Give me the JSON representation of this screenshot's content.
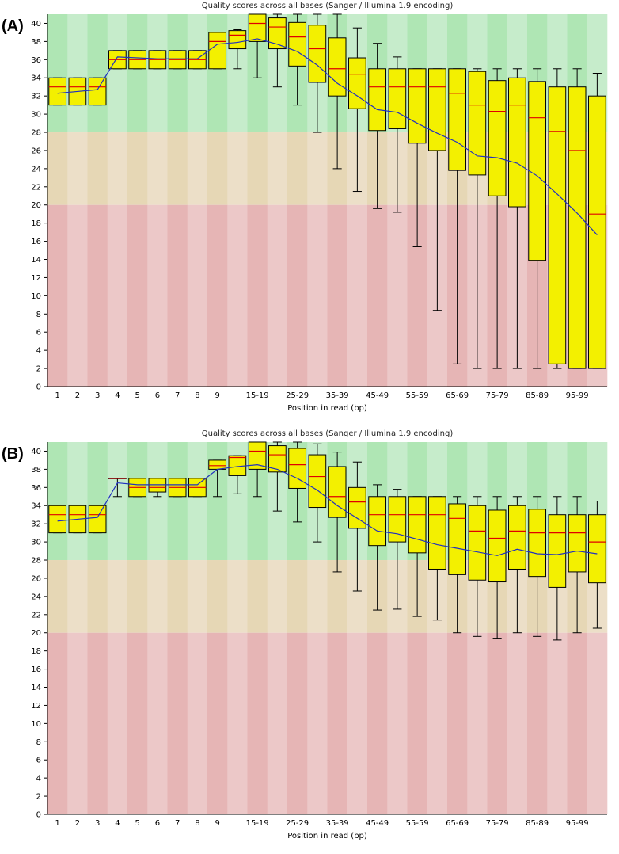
{
  "chart_data": [
    {
      "panel_label": "(A)",
      "type": "boxplot",
      "title": "Quality scores across all bases (Sanger / Illumina 1.9 encoding)",
      "xlabel": "Position in read (bp)",
      "ylabel": "",
      "ylim": [
        0,
        41
      ],
      "yticks": [
        0,
        2,
        4,
        6,
        8,
        10,
        12,
        14,
        16,
        18,
        20,
        22,
        24,
        26,
        28,
        30,
        32,
        34,
        36,
        38,
        40
      ],
      "zones": [
        {
          "name": "good",
          "from": 28,
          "to": 41,
          "colors": [
            "#afe6b4",
            "#c6eccb"
          ]
        },
        {
          "name": "reasonable",
          "from": 20,
          "to": 28,
          "colors": [
            "#e6d7b5",
            "#ecdfc8"
          ]
        },
        {
          "name": "poor",
          "from": 0,
          "to": 20,
          "colors": [
            "#e6b5b5",
            "#ecc8c8"
          ]
        }
      ],
      "colors": {
        "box": "#f3f000",
        "median": "#e00000",
        "mean": "#2030c0"
      },
      "categories": [
        "1",
        "2",
        "3",
        "4",
        "5",
        "6",
        "7",
        "8",
        "9",
        "10-14",
        "15-19",
        "20-24",
        "25-29",
        "30-34",
        "35-39",
        "40-44",
        "45-49",
        "50-54",
        "55-59",
        "60-64",
        "65-69",
        "70-74",
        "75-79",
        "80-84",
        "85-89",
        "90-94",
        "95-99",
        "100"
      ],
      "shown_tick_labels": [
        "1",
        "2",
        "3",
        "4",
        "5",
        "6",
        "7",
        "8",
        "9",
        "15-19",
        "25-29",
        "35-39",
        "45-49",
        "55-59",
        "65-69",
        "75-79",
        "85-89",
        "95-99"
      ],
      "series": [
        {
          "name": "lower_whisker",
          "values": [
            31,
            31,
            31,
            35,
            35,
            35,
            35,
            35,
            35,
            35,
            34,
            33,
            31,
            28,
            24,
            21.5,
            19.6,
            19.2,
            15.4,
            8.4,
            2.5,
            2,
            2,
            2,
            2,
            2,
            2,
            2
          ]
        },
        {
          "name": "q1",
          "values": [
            31,
            31,
            31,
            35,
            35,
            35,
            35,
            35,
            35,
            37.2,
            38,
            37.2,
            35.3,
            33.5,
            32,
            30.6,
            28.2,
            28.4,
            26.8,
            26,
            23.8,
            23.3,
            21,
            19.8,
            13.9,
            2.5,
            2,
            2
          ]
        },
        {
          "name": "median",
          "values": [
            33,
            33,
            33,
            36,
            36,
            36,
            36,
            36,
            38,
            38.7,
            40,
            39.6,
            38.5,
            37.2,
            35,
            34.4,
            33,
            33,
            33,
            33,
            32.3,
            31,
            30.3,
            31,
            29.6,
            28.1,
            26,
            19
          ]
        },
        {
          "name": "q3",
          "values": [
            34,
            34,
            34,
            37,
            37,
            37,
            37,
            37,
            39,
            39.2,
            41,
            40.6,
            40.1,
            39.8,
            38.4,
            36.2,
            35,
            35,
            35,
            35,
            35,
            34.7,
            33.7,
            34,
            33.6,
            33,
            33,
            32
          ]
        },
        {
          "name": "upper_whisker",
          "values": [
            34,
            34,
            34,
            37,
            37,
            37,
            37,
            37,
            39,
            39.3,
            41,
            41,
            41,
            41,
            41,
            39.5,
            37.8,
            36.3,
            35,
            35,
            35,
            35,
            35,
            35,
            35,
            35,
            35,
            34.5
          ]
        },
        {
          "name": "mean",
          "values": [
            32.3,
            32.5,
            32.7,
            36.3,
            36.2,
            36.1,
            36.1,
            36.1,
            37.7,
            37.9,
            38.3,
            37.7,
            36.9,
            35.4,
            33.4,
            32,
            30.5,
            30.2,
            29,
            27.9,
            26.9,
            25.4,
            25.2,
            24.6,
            23.2,
            21.2,
            19.1,
            16.7
          ]
        }
      ]
    },
    {
      "panel_label": "(B)",
      "type": "boxplot",
      "title": "Quality scores across all bases (Sanger / Illumina 1.9 encoding)",
      "xlabel": "Position in read (bp)",
      "ylabel": "",
      "ylim": [
        0,
        41
      ],
      "yticks": [
        0,
        2,
        4,
        6,
        8,
        10,
        12,
        14,
        16,
        18,
        20,
        22,
        24,
        26,
        28,
        30,
        32,
        34,
        36,
        38,
        40
      ],
      "zones": [
        {
          "name": "good",
          "from": 28,
          "to": 41,
          "colors": [
            "#afe6b4",
            "#c6eccb"
          ]
        },
        {
          "name": "reasonable",
          "from": 20,
          "to": 28,
          "colors": [
            "#e6d7b5",
            "#ecdfc8"
          ]
        },
        {
          "name": "poor",
          "from": 0,
          "to": 20,
          "colors": [
            "#e6b5b5",
            "#ecc8c8"
          ]
        }
      ],
      "colors": {
        "box": "#f3f000",
        "median": "#e00000",
        "mean": "#2030c0"
      },
      "categories": [
        "1",
        "2",
        "3",
        "4",
        "5",
        "6",
        "7",
        "8",
        "9",
        "10-14",
        "15-19",
        "20-24",
        "25-29",
        "30-34",
        "35-39",
        "40-44",
        "45-49",
        "50-54",
        "55-59",
        "60-64",
        "65-69",
        "70-74",
        "75-79",
        "80-84",
        "85-89",
        "90-94",
        "95-99",
        "100"
      ],
      "shown_tick_labels": [
        "1",
        "2",
        "3",
        "4",
        "5",
        "6",
        "7",
        "8",
        "9",
        "15-19",
        "25-29",
        "35-39",
        "45-49",
        "55-59",
        "65-69",
        "75-79",
        "85-89",
        "95-99"
      ],
      "series": [
        {
          "name": "lower_whisker",
          "values": [
            31,
            31,
            31,
            35,
            35,
            35,
            35,
            35,
            35,
            35.3,
            35,
            33.4,
            32.2,
            30,
            26.7,
            24.6,
            22.5,
            22.6,
            21.8,
            21.4,
            20,
            19.6,
            19.4,
            20,
            19.6,
            19.2,
            20,
            20.5
          ]
        },
        {
          "name": "q1",
          "values": [
            31,
            31,
            31,
            37,
            35,
            35.5,
            35,
            35,
            38,
            37.3,
            38,
            37.7,
            35.9,
            33.8,
            32.7,
            31.5,
            29.6,
            30,
            28.8,
            27,
            26.4,
            25.8,
            25.6,
            27,
            26.2,
            25,
            26.7,
            25.5
          ]
        },
        {
          "name": "median",
          "values": [
            33,
            33,
            33,
            37,
            36,
            36,
            36,
            36,
            38.4,
            39.3,
            40,
            39.6,
            38.5,
            37.2,
            35,
            34.4,
            33,
            33,
            33,
            33,
            32.6,
            31.2,
            30.4,
            31.2,
            31,
            31,
            31,
            30
          ]
        },
        {
          "name": "q3",
          "values": [
            34,
            34,
            34,
            37,
            37,
            37,
            37,
            37,
            39,
            39.5,
            41,
            40.6,
            40.3,
            39.6,
            38.3,
            36,
            35,
            35,
            35,
            35,
            34.2,
            34,
            33.5,
            34,
            33.6,
            33,
            33,
            33
          ]
        },
        {
          "name": "upper_whisker",
          "values": [
            34,
            34,
            34,
            37,
            37,
            37,
            37,
            37,
            39,
            39.5,
            41,
            41,
            41,
            40.8,
            39.9,
            38.8,
            36.3,
            35.8,
            35,
            35,
            35,
            35,
            35,
            35,
            35,
            35,
            35,
            34.5
          ]
        },
        {
          "name": "mean",
          "values": [
            32.3,
            32.5,
            32.7,
            36.5,
            36.3,
            36.3,
            36.3,
            36.3,
            38,
            38.3,
            38.5,
            38,
            37,
            35.7,
            34,
            32.6,
            31.2,
            30.9,
            30.3,
            29.7,
            29.3,
            28.9,
            28.5,
            29.2,
            28.7,
            28.6,
            29,
            28.7
          ]
        }
      ]
    }
  ]
}
